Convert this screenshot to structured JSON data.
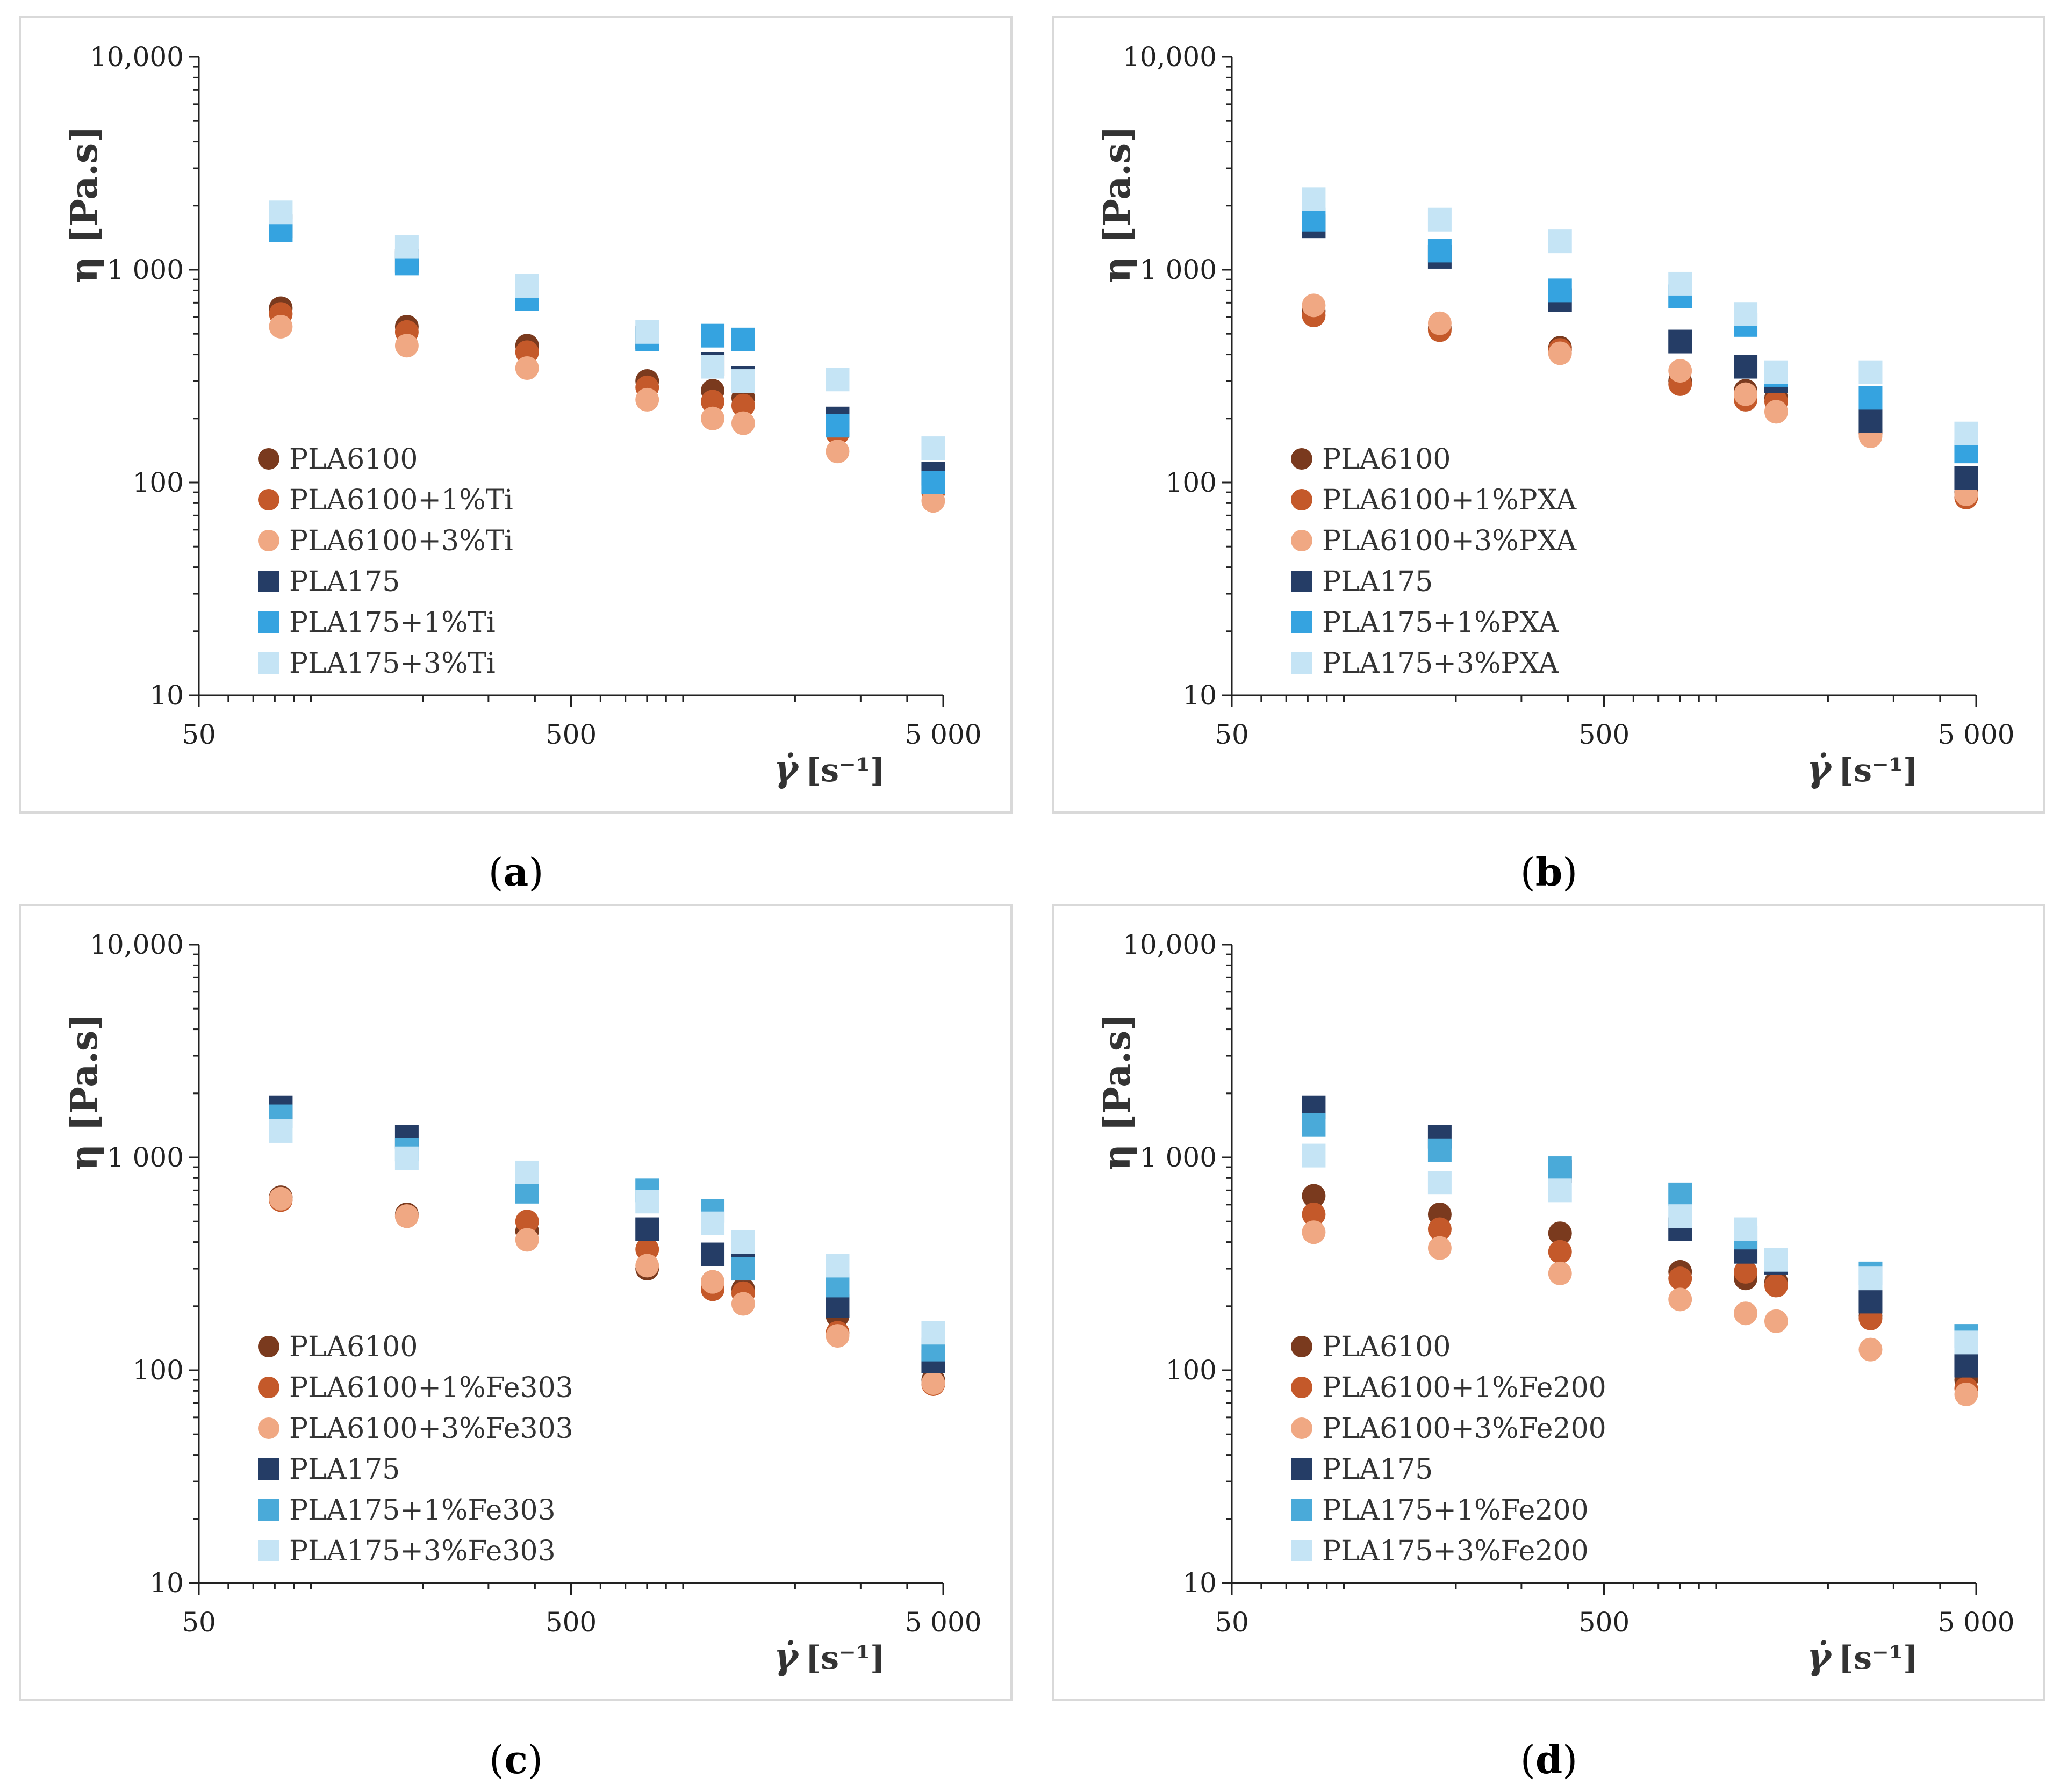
{
  "chart_data": [
    {
      "type": "scatter",
      "panel_label": "a",
      "ylabel": "η [Pa.s]",
      "xlabel": "γ̇",
      "xlabel_unit": "[s⁻¹]",
      "xscale": "log",
      "yscale": "log",
      "xlim": [
        50,
        5000
      ],
      "ylim": [
        10,
        10000
      ],
      "xticks": [
        50,
        500,
        5000
      ],
      "xtick_labels": [
        "50",
        "500",
        "5 000"
      ],
      "yticks": [
        10,
        100,
        1000,
        10000
      ],
      "ytick_labels": [
        "10",
        "100",
        "1 000",
        "10,000"
      ],
      "legend_position": "bottom-left",
      "x": [
        83,
        181,
        381,
        801,
        1201,
        1451,
        2601,
        4701
      ],
      "series": [
        {
          "name": "PLA6100",
          "marker": "circle",
          "color": "#7a3a1e",
          "values": [
            660,
            540,
            440,
            300,
            270,
            250,
            190,
            95
          ]
        },
        {
          "name": "PLA6100+1%Ti",
          "marker": "circle",
          "color": "#c4592a",
          "values": [
            620,
            510,
            410,
            280,
            240,
            230,
            170,
            90
          ]
        },
        {
          "name": "PLA6100+3%Ti",
          "marker": "circle",
          "color": "#f0a883",
          "values": [
            540,
            440,
            345,
            245,
            200,
            190,
            140,
            82
          ]
        },
        {
          "name": "PLA175",
          "marker": "square",
          "color": "#253d66",
          "values": [
            1600,
            1100,
            780,
            480,
            360,
            310,
            200,
            110
          ]
        },
        {
          "name": "PLA175+1%Ti",
          "marker": "square",
          "color": "#35a3e0",
          "values": [
            1530,
            1070,
            730,
            470,
            490,
            470,
            185,
            100
          ]
        },
        {
          "name": "PLA175+3%Ti",
          "marker": "square",
          "color": "#c5e4f5",
          "values": [
            1860,
            1280,
            840,
            510,
            350,
            300,
            305,
            145
          ]
        }
      ]
    },
    {
      "type": "scatter",
      "panel_label": "b",
      "ylabel": "η [Pa.s]",
      "xlabel": "γ̇",
      "xlabel_unit": "[s⁻¹]",
      "xscale": "log",
      "yscale": "log",
      "xlim": [
        50,
        5000
      ],
      "ylim": [
        10,
        10000
      ],
      "xticks": [
        50,
        500,
        5000
      ],
      "xtick_labels": [
        "50",
        "500",
        "5 000"
      ],
      "yticks": [
        10,
        100,
        1000,
        10000
      ],
      "ytick_labels": [
        "10",
        "100",
        "1 000",
        "10,000"
      ],
      "legend_position": "bottom-left",
      "x": [
        83,
        181,
        381,
        801,
        1201,
        1451,
        2601,
        4701
      ],
      "series": [
        {
          "name": "PLA6100",
          "marker": "circle",
          "color": "#7a3a1e",
          "values": [
            640,
            530,
            430,
            300,
            270,
            250,
            175,
            90
          ]
        },
        {
          "name": "PLA6100+1%PXA",
          "marker": "circle",
          "color": "#c4592a",
          "values": [
            610,
            520,
            420,
            290,
            245,
            240,
            170,
            85
          ]
        },
        {
          "name": "PLA6100+3%PXA",
          "marker": "circle",
          "color": "#f0a883",
          "values": [
            680,
            560,
            405,
            335,
            260,
            215,
            165,
            88
          ]
        },
        {
          "name": "PLA175",
          "marker": "square",
          "color": "#253d66",
          "values": [
            1600,
            1150,
            720,
            460,
            350,
            300,
            195,
            105
          ]
        },
        {
          "name": "PLA175+1%PXA",
          "marker": "square",
          "color": "#35a3e0",
          "values": [
            1720,
            1230,
            800,
            750,
            550,
            320,
            250,
            140
          ]
        },
        {
          "name": "PLA175+3%PXA",
          "marker": "square",
          "color": "#c5e4f5",
          "values": [
            2150,
            1720,
            1360,
            860,
            620,
            330,
            330,
            170
          ]
        }
      ]
    },
    {
      "type": "scatter",
      "panel_label": "c",
      "ylabel": "η [Pa.s]",
      "xlabel": "γ̇",
      "xlabel_unit": "[s⁻¹]",
      "xscale": "log",
      "yscale": "log",
      "xlim": [
        50,
        5000
      ],
      "ylim": [
        10,
        10000
      ],
      "xticks": [
        50,
        500,
        5000
      ],
      "xtick_labels": [
        "50",
        "500",
        "5 000"
      ],
      "yticks": [
        10,
        100,
        1000,
        10000
      ],
      "ytick_labels": [
        "10",
        "100",
        "1 000",
        "10,000"
      ],
      "legend_position": "bottom-left",
      "x": [
        83,
        181,
        381,
        801,
        1201,
        1451,
        2601,
        4701
      ],
      "series": [
        {
          "name": "PLA6100",
          "marker": "circle",
          "color": "#7a3a1e",
          "values": [
            650,
            540,
            450,
            300,
            260,
            240,
            180,
            90
          ]
        },
        {
          "name": "PLA6100+1%Fe303",
          "marker": "circle",
          "color": "#c4592a",
          "values": [
            630,
            530,
            500,
            370,
            240,
            230,
            150,
            86
          ]
        },
        {
          "name": "PLA6100+3%Fe303",
          "marker": "circle",
          "color": "#f0a883",
          "values": [
            640,
            530,
            410,
            310,
            260,
            205,
            145,
            87
          ]
        },
        {
          "name": "PLA175",
          "marker": "square",
          "color": "#253d66",
          "values": [
            1720,
            1250,
            780,
            460,
            350,
            320,
            200,
            110
          ]
        },
        {
          "name": "PLA175+1%Fe303",
          "marker": "square",
          "color": "#4aaad9",
          "values": [
            1560,
            1090,
            690,
            700,
            560,
            300,
            250,
            125
          ]
        },
        {
          "name": "PLA175+3%Fe303",
          "marker": "square",
          "color": "#c5e4f5",
          "values": [
            1330,
            990,
            850,
            620,
            490,
            400,
            310,
            150
          ]
        }
      ]
    },
    {
      "type": "scatter",
      "panel_label": "d",
      "ylabel": "η [Pa.s]",
      "xlabel": "γ̇",
      "xlabel_unit": "[s⁻¹]",
      "xscale": "log",
      "yscale": "log",
      "xlim": [
        50,
        5000
      ],
      "ylim": [
        10,
        10000
      ],
      "xticks": [
        50,
        500,
        5000
      ],
      "xtick_labels": [
        "50",
        "500",
        "5 000"
      ],
      "yticks": [
        10,
        100,
        1000,
        10000
      ],
      "ytick_labels": [
        "10",
        "100",
        "1 000",
        "10,000"
      ],
      "legend_position": "bottom-left",
      "x": [
        83,
        181,
        381,
        801,
        1201,
        1451,
        2601,
        4701
      ],
      "series": [
        {
          "name": "PLA6100",
          "marker": "circle",
          "color": "#7a3a1e",
          "values": [
            660,
            540,
            440,
            290,
            270,
            260,
            180,
            90
          ]
        },
        {
          "name": "PLA6100+1%Fe200",
          "marker": "circle",
          "color": "#c4592a",
          "values": [
            540,
            460,
            360,
            270,
            290,
            250,
            175,
            82
          ]
        },
        {
          "name": "PLA6100+3%Fe200",
          "marker": "circle",
          "color": "#f0a883",
          "values": [
            445,
            375,
            285,
            215,
            185,
            170,
            125,
            77
          ]
        },
        {
          "name": "PLA175",
          "marker": "square",
          "color": "#253d66",
          "values": [
            1720,
            1250,
            860,
            460,
            360,
            320,
            210,
            105
          ]
        },
        {
          "name": "PLA175+1%Fe200",
          "marker": "square",
          "color": "#4aaad9",
          "values": [
            1420,
            1080,
            890,
            670,
            420,
            330,
            285,
            145
          ]
        },
        {
          "name": "PLA175+3%Fe200",
          "marker": "square",
          "color": "#c5e4f5",
          "values": [
            1020,
            760,
            700,
            530,
            460,
            330,
            270,
            135
          ]
        }
      ]
    }
  ]
}
